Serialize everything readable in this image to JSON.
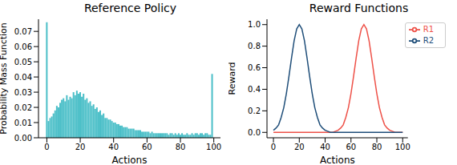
{
  "chart_data": [
    {
      "type": "bar",
      "title": "Reference Policy",
      "x_label": "Actions",
      "y_label": "Probability Mass Function",
      "color": "#4bbfc8",
      "x": [
        0,
        1,
        2,
        3,
        4,
        5,
        6,
        7,
        8,
        9,
        10,
        11,
        12,
        13,
        14,
        15,
        16,
        17,
        18,
        19,
        20,
        21,
        22,
        23,
        24,
        25,
        26,
        27,
        28,
        29,
        30,
        31,
        32,
        33,
        34,
        35,
        36,
        37,
        38,
        39,
        40,
        41,
        42,
        43,
        44,
        45,
        46,
        47,
        48,
        49,
        50,
        51,
        52,
        53,
        54,
        55,
        56,
        57,
        58,
        59,
        60,
        61,
        62,
        63,
        64,
        65,
        66,
        67,
        68,
        69,
        70,
        71,
        72,
        73,
        74,
        75,
        76,
        77,
        78,
        79,
        80,
        81,
        82,
        83,
        84,
        85,
        86,
        87,
        88,
        89,
        90,
        91,
        92,
        93,
        94,
        95,
        96,
        97,
        98,
        99
      ],
      "values": [
        0.076,
        0.011,
        0.013,
        0.014,
        0.016,
        0.018,
        0.021,
        0.02,
        0.023,
        0.025,
        0.026,
        0.024,
        0.028,
        0.025,
        0.027,
        0.026,
        0.03,
        0.028,
        0.031,
        0.029,
        0.03,
        0.027,
        0.029,
        0.025,
        0.026,
        0.023,
        0.024,
        0.021,
        0.022,
        0.019,
        0.02,
        0.017,
        0.018,
        0.015,
        0.016,
        0.013,
        0.013,
        0.012,
        0.012,
        0.011,
        0.01,
        0.01,
        0.009,
        0.009,
        0.008,
        0.008,
        0.007,
        0.007,
        0.007,
        0.006,
        0.006,
        0.006,
        0.006,
        0.005,
        0.005,
        0.005,
        0.005,
        0.004,
        0.004,
        0.004,
        0.004,
        0.004,
        0.003,
        0.004,
        0.003,
        0.003,
        0.003,
        0.003,
        0.003,
        0.003,
        0.003,
        0.003,
        0.003,
        0.002,
        0.003,
        0.003,
        0.002,
        0.003,
        0.002,
        0.003,
        0.002,
        0.003,
        0.002,
        0.002,
        0.003,
        0.002,
        0.002,
        0.003,
        0.002,
        0.003,
        0.003,
        0.002,
        0.003,
        0.003,
        0.002,
        0.003,
        0.003,
        0.002,
        0.002,
        0.042
      ],
      "xlim": [
        -5,
        104
      ],
      "xticks": [
        0,
        20,
        40,
        60,
        80,
        100
      ],
      "ylim": [
        0,
        0.078
      ],
      "yticks": [
        {
          "value": 0,
          "label": "0.00"
        },
        {
          "value": 0.01,
          "label": "0.01"
        },
        {
          "value": 0.02,
          "label": "0.02"
        },
        {
          "value": 0.03,
          "label": "0.03"
        },
        {
          "value": 0.04,
          "label": "0.04"
        },
        {
          "value": 0.05,
          "label": "0.05"
        },
        {
          "value": 0.06,
          "label": "0.06"
        },
        {
          "value": 0.07,
          "label": "0.07"
        }
      ]
    },
    {
      "type": "line",
      "title": "Reward Functions",
      "x_label": "Actions",
      "y_label": "Reward",
      "legend": "upper right",
      "x": [
        0,
        2,
        4,
        6,
        8,
        10,
        12,
        14,
        16,
        18,
        20,
        22,
        24,
        26,
        28,
        30,
        32,
        34,
        36,
        38,
        40,
        42,
        44,
        46,
        48,
        50,
        52,
        54,
        56,
        58,
        60,
        62,
        64,
        66,
        68,
        70,
        72,
        74,
        76,
        78,
        80,
        82,
        84,
        86,
        88,
        90,
        92,
        94,
        96,
        98,
        100
      ],
      "series": [
        {
          "name": "R1",
          "color": "#ee5148",
          "values": [
            0,
            0,
            0,
            0,
            0,
            0,
            0,
            0,
            0,
            0,
            0,
            0,
            0,
            0,
            0,
            0,
            0,
            0,
            0,
            0,
            0,
            0,
            0,
            0,
            0.01,
            0.02,
            0.04,
            0.07,
            0.14,
            0.23,
            0.36,
            0.52,
            0.69,
            0.85,
            0.96,
            1.0,
            0.96,
            0.85,
            0.69,
            0.52,
            0.36,
            0.23,
            0.14,
            0.07,
            0.04,
            0.02,
            0.01,
            0,
            0,
            0,
            0
          ]
        },
        {
          "name": "R2",
          "color": "#1f4e79",
          "values": [
            0.02,
            0.04,
            0.07,
            0.14,
            0.23,
            0.36,
            0.52,
            0.69,
            0.85,
            0.96,
            1.0,
            0.96,
            0.85,
            0.69,
            0.52,
            0.36,
            0.23,
            0.14,
            0.07,
            0.04,
            0.02,
            0.01,
            0,
            0,
            0,
            0,
            0,
            0,
            0,
            0,
            0,
            0,
            0,
            0,
            0,
            0,
            0,
            0,
            0,
            0,
            0,
            0,
            0,
            0,
            0,
            0,
            0,
            0,
            0,
            0,
            0
          ]
        }
      ],
      "xlim": [
        -5,
        104
      ],
      "xticks": [
        0,
        20,
        40,
        60,
        80,
        100
      ],
      "ylim": [
        -0.05,
        1.05
      ],
      "yticks": [
        {
          "value": 0,
          "label": "0.0"
        },
        {
          "value": 0.2,
          "label": "0.2"
        },
        {
          "value": 0.4,
          "label": "0.4"
        },
        {
          "value": 0.6,
          "label": "0.6"
        },
        {
          "value": 0.8,
          "label": "0.8"
        },
        {
          "value": 1,
          "label": "1.0"
        }
      ]
    }
  ]
}
